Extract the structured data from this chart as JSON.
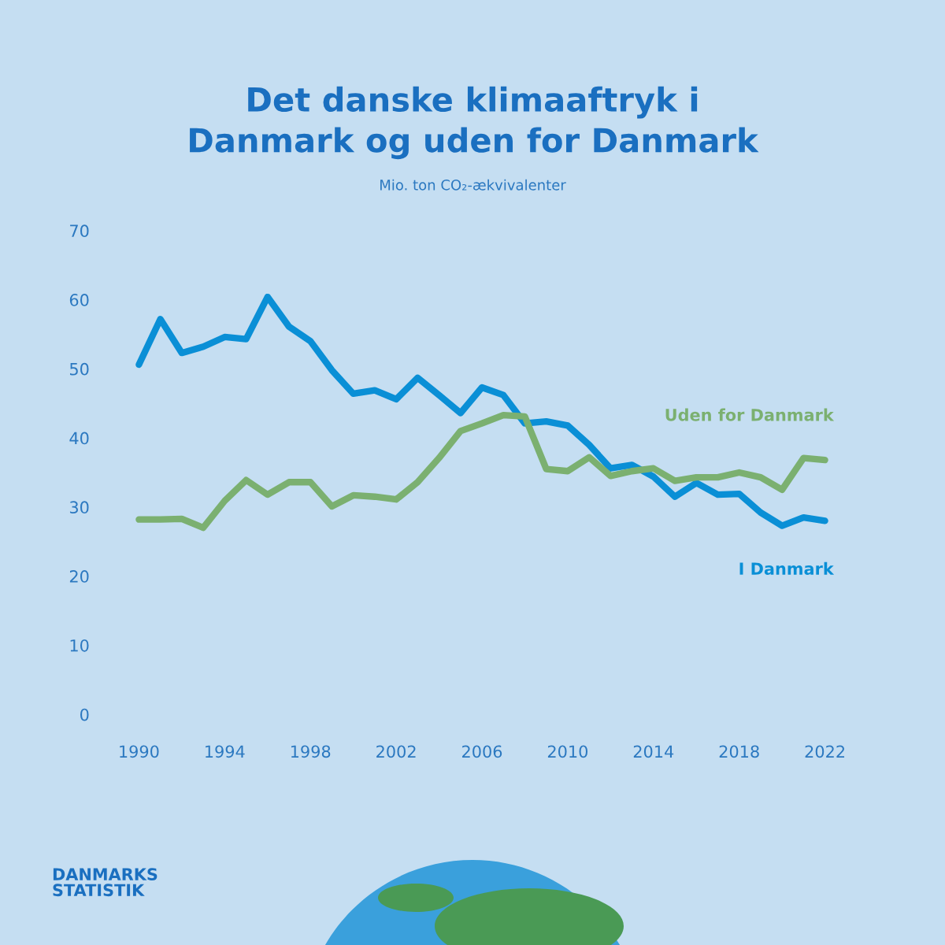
{
  "chart_data": {
    "type": "line",
    "title": "Det danske klimaaftryk i\nDanmark og uden for Danmark",
    "subtitle": "Mio. ton CO₂-ækvivalenter",
    "x": [
      1990,
      1991,
      1992,
      1993,
      1994,
      1995,
      1996,
      1997,
      1998,
      1999,
      2000,
      2001,
      2002,
      2003,
      2004,
      2005,
      2006,
      2007,
      2008,
      2009,
      2010,
      2011,
      2012,
      2013,
      2014,
      2015,
      2016,
      2017,
      2018,
      2019,
      2020,
      2021,
      2022
    ],
    "series": [
      {
        "name": "I Danmark",
        "color": "#0a8fd6",
        "values": [
          50.6,
          57.2,
          52.3,
          53.2,
          54.6,
          54.3,
          60.4,
          56.1,
          54.0,
          49.8,
          46.4,
          46.9,
          45.6,
          48.7,
          46.2,
          43.6,
          47.3,
          46.2,
          42.1,
          42.4,
          41.8,
          39.0,
          35.6,
          36.1,
          34.4,
          31.5,
          33.5,
          31.8,
          31.9,
          29.2,
          27.3,
          28.5,
          28.0
        ]
      },
      {
        "name": "Uden for Danmark",
        "color": "#7bb070",
        "values": [
          28.2,
          28.2,
          28.3,
          27.0,
          30.9,
          33.9,
          31.8,
          33.6,
          33.6,
          30.1,
          31.7,
          31.5,
          31.1,
          33.6,
          37.1,
          41.0,
          42.1,
          43.3,
          43.1,
          35.5,
          35.2,
          37.2,
          34.5,
          35.2,
          35.6,
          33.8,
          34.3,
          34.3,
          35.0,
          34.3,
          32.5,
          37.1,
          36.8
        ]
      }
    ],
    "xlim": [
      1990,
      2022
    ],
    "xticks": [
      1990,
      1994,
      1998,
      2002,
      2006,
      2010,
      2014,
      2018,
      2022
    ],
    "ylim": [
      0,
      70
    ],
    "yticks": [
      0,
      10,
      20,
      30,
      40,
      50,
      60,
      70
    ],
    "grid": false,
    "legend": false,
    "marker": "none",
    "line_style": "solid",
    "annotations": [
      "DANMARKS\nSTATISTIK"
    ]
  }
}
